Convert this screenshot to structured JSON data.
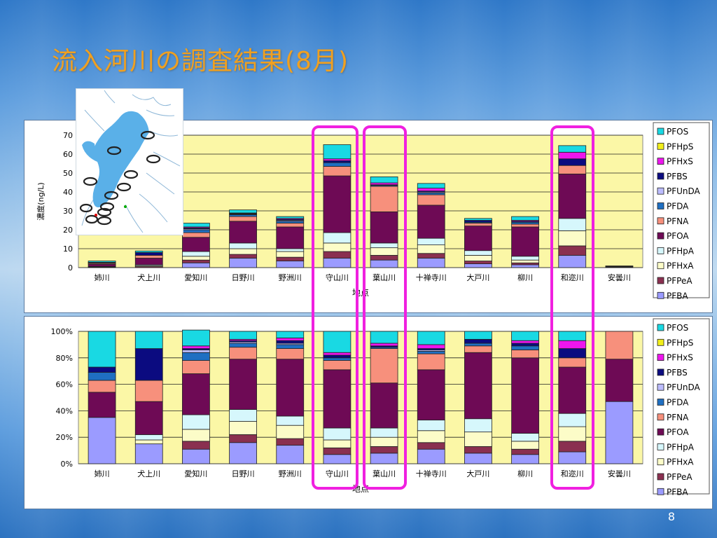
{
  "slide": {
    "title": "流入河川の調査結果(8月)",
    "page_number": "8"
  },
  "legend_items": [
    "PFOS",
    "PFHpS",
    "PFHxS",
    "PFBS",
    "PFUnDA",
    "PFDA",
    "PFNA",
    "PFOA",
    "PFHpA",
    "PFHxA",
    "PFPeA",
    "PFBA"
  ],
  "colors": {
    "PFOS": "#19d9e3",
    "PFHpS": "#f2ef1a",
    "PFHxS": "#ee16ee",
    "PFBS": "#0b0b80",
    "PFUnDA": "#bcbcff",
    "PFDA": "#1f6fc2",
    "PFNA": "#f7907c",
    "PFOA": "#6e0a55",
    "PFHpA": "#d6f7fc",
    "PFHxA": "#fcfcc8",
    "PFPeA": "#8a3050",
    "PFBA": "#9b9bff",
    "plot_bg": "#fbf7a6",
    "highlight": "#f020e0"
  },
  "chart_data": [
    {
      "type": "bar",
      "stacked": true,
      "title": "",
      "xlabel": "地点",
      "ylabel": "濃度(ng/L)",
      "ylim": [
        0,
        70
      ],
      "yticks": [
        "0",
        "10",
        "20",
        "30",
        "40",
        "50",
        "60",
        "70"
      ],
      "grid": true,
      "legend_position": "right",
      "categories": [
        "姉川",
        "犬上川",
        "愛知川",
        "日野川",
        "野洲川",
        "守山川",
        "葉山川",
        "十禅寺川",
        "大戸川",
        "柳川",
        "和迩川",
        "安曇川"
      ],
      "series": [
        {
          "name": "PFBA",
          "values": [
            0,
            0,
            2.5,
            5,
            3.5,
            5,
            4,
            5,
            2,
            1.5,
            6.5,
            0
          ]
        },
        {
          "name": "PFPeA",
          "values": [
            0.3,
            0.5,
            1.5,
            2,
            2,
            3.5,
            2.5,
            2.5,
            1.5,
            1,
            5,
            0
          ]
        },
        {
          "name": "PFHxA",
          "values": [
            0.3,
            0.5,
            2,
            3,
            3,
            4.5,
            4,
            4.5,
            3,
            1.5,
            8,
            0
          ]
        },
        {
          "name": "PFHpA",
          "values": [
            0,
            0.5,
            2.5,
            3,
            1.5,
            5.5,
            2.5,
            3.5,
            2.5,
            2,
            6.5,
            0
          ]
        },
        {
          "name": "PFOA",
          "values": [
            1.2,
            3.5,
            7.5,
            11.5,
            11.5,
            30,
            16.5,
            17.5,
            13,
            15.5,
            23.5,
            0.6
          ]
        },
        {
          "name": "PFNA",
          "values": [
            0.5,
            1.5,
            2.5,
            2.5,
            2,
            5,
            13.5,
            5.5,
            1.5,
            1.5,
            4.5,
            0.3
          ]
        },
        {
          "name": "PFDA",
          "values": [
            0.3,
            0,
            1.5,
            1,
            1,
            2,
            0.5,
            1,
            0.5,
            1,
            0,
            0
          ]
        },
        {
          "name": "PFUnDA",
          "values": [
            0,
            0,
            0.5,
            0.3,
            0.5,
            0,
            0,
            0.5,
            0,
            0,
            0,
            0
          ]
        },
        {
          "name": "PFBS",
          "values": [
            0.2,
            1.5,
            0.5,
            0.3,
            0.5,
            1,
            0.3,
            0.5,
            1,
            0.5,
            3.5,
            0
          ]
        },
        {
          "name": "PFHxS",
          "values": [
            0,
            0,
            0.5,
            0.3,
            0.5,
            1,
            1,
            1.5,
            0,
            0.5,
            3.5,
            0
          ]
        },
        {
          "name": "PFHpS",
          "values": [
            0,
            0,
            0,
            0,
            0,
            0,
            0,
            0,
            0,
            0,
            0,
            0
          ]
        },
        {
          "name": "PFOS",
          "values": [
            0.7,
            0.8,
            2,
            1.6,
            1,
            7.5,
            3.2,
            2.5,
            1,
            2,
            3.5,
            0
          ]
        }
      ]
    },
    {
      "type": "bar",
      "stacked": true,
      "percent": true,
      "title": "",
      "xlabel": "地点",
      "ylabel": "",
      "ylim": [
        0,
        100
      ],
      "yticks": [
        "0%",
        "20%",
        "40%",
        "60%",
        "80%",
        "100%"
      ],
      "grid": true,
      "legend_position": "right",
      "categories": [
        "姉川",
        "犬上川",
        "愛知川",
        "日野川",
        "野洲川",
        "守山川",
        "葉山川",
        "十禅寺川",
        "大戸川",
        "柳川",
        "和迩川",
        "安曇川"
      ],
      "series": [
        {
          "name": "PFBA",
          "values": [
            35,
            15,
            11,
            16,
            14,
            7,
            8,
            11,
            8,
            7,
            9,
            47
          ]
        },
        {
          "name": "PFPeA",
          "values": [
            0,
            0,
            6,
            6,
            5,
            5,
            5,
            5,
            5,
            4,
            8,
            0
          ]
        },
        {
          "name": "PFHxA",
          "values": [
            0,
            3,
            9,
            10,
            10,
            6,
            7,
            9,
            11,
            6,
            11,
            0
          ]
        },
        {
          "name": "PFHpA",
          "values": [
            0,
            4,
            11,
            9,
            7,
            9,
            7,
            8,
            10,
            6,
            10,
            0
          ]
        },
        {
          "name": "PFOA",
          "values": [
            19,
            25,
            31,
            38,
            43,
            44,
            34,
            38,
            50,
            57,
            35,
            32
          ]
        },
        {
          "name": "PFNA",
          "values": [
            9,
            16,
            10,
            9,
            8,
            7,
            26,
            12,
            5,
            6,
            7,
            21
          ]
        },
        {
          "name": "PFDA",
          "values": [
            6,
            0,
            6,
            3,
            3,
            2,
            1,
            2,
            2,
            3,
            0,
            0
          ]
        },
        {
          "name": "PFUnDA",
          "values": [
            0,
            0,
            2,
            1,
            1,
            0,
            0,
            1,
            0,
            0,
            0,
            0
          ]
        },
        {
          "name": "PFBS",
          "values": [
            4,
            24,
            1,
            1,
            2,
            2,
            1,
            1,
            3,
            2,
            7,
            0
          ]
        },
        {
          "name": "PFHxS",
          "values": [
            0,
            0,
            2,
            1,
            2,
            2,
            2,
            3,
            0,
            2,
            6,
            0
          ]
        },
        {
          "name": "PFHpS",
          "values": [
            0,
            0,
            0,
            0,
            0,
            0,
            0,
            0,
            0,
            0,
            0,
            0
          ]
        },
        {
          "name": "PFOS",
          "values": [
            27,
            13,
            12,
            6,
            5,
            16,
            9,
            10,
            6,
            7,
            7,
            0
          ]
        }
      ]
    }
  ],
  "highlighted_sites": [
    "守山川",
    "葉山川",
    "和迩川"
  ]
}
